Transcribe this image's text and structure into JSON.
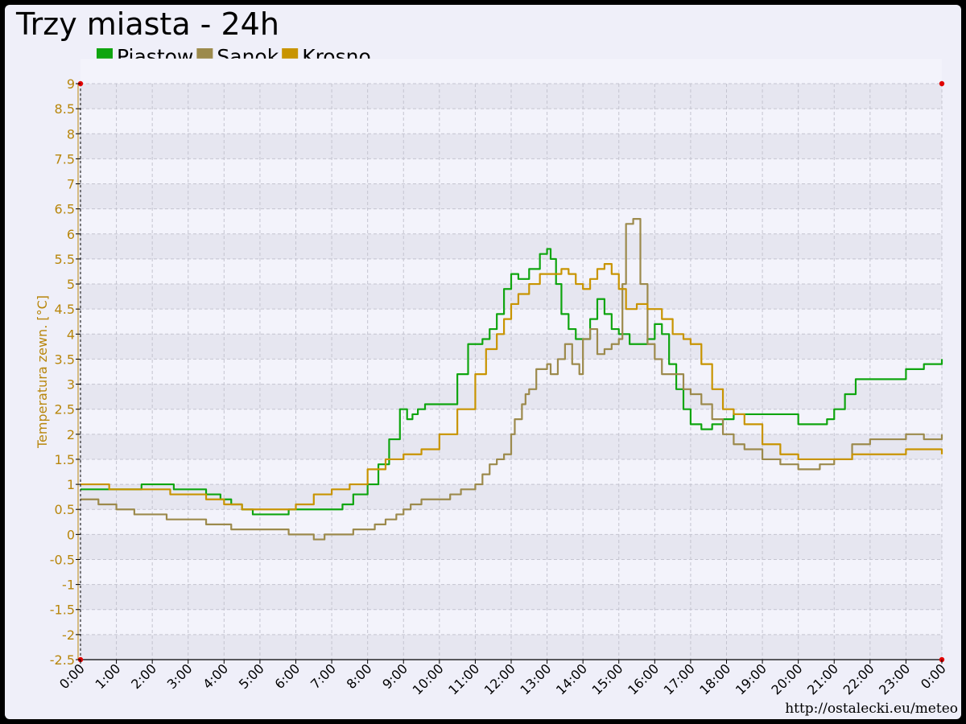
{
  "chart_data": {
    "type": "line",
    "title": "Trzy miasta - 24h",
    "ylabel": "Temperatura zewn. [°C]",
    "xlabel": "",
    "ylim": [
      -2.5,
      9
    ],
    "yticks": [
      "9",
      "8.5",
      "8",
      "7.5",
      "7",
      "6.5",
      "6",
      "5.5",
      "5",
      "4.5",
      "4",
      "3.5",
      "3",
      "2.5",
      "2",
      "1.5",
      "1",
      "0.5",
      "0",
      "-0.5",
      "-1",
      "-1.5",
      "-2",
      "-2.5"
    ],
    "xticks": [
      "0:00",
      "1:00",
      "2:00",
      "3:00",
      "4:00",
      "5:00",
      "6:00",
      "7:00",
      "8:00",
      "9:00",
      "10:00",
      "11:00",
      "12:00",
      "13:00",
      "14:00",
      "15:00",
      "16:00",
      "17:00",
      "18:00",
      "19:00",
      "20:00",
      "21:00",
      "22:00",
      "23:00",
      "0:00"
    ],
    "grid": true,
    "legend_position": "top-left",
    "colors": {
      "axis_text": "#b8860b",
      "piastow": "#0fa50f",
      "sanok": "#9c8a4c",
      "krosno": "#c89400"
    },
    "series": [
      {
        "name": "Piastow",
        "x": [
          0,
          0.5,
          0.8,
          1.5,
          1.7,
          2.4,
          2.6,
          3.2,
          3.5,
          3.9,
          4.2,
          4.5,
          4.8,
          5.5,
          5.8,
          6.3,
          7,
          7.3,
          7.6,
          8,
          8.3,
          8.6,
          8.9,
          9.1,
          9.25,
          9.4,
          9.6,
          10,
          10.2,
          10.5,
          10.8,
          11,
          11.2,
          11.4,
          11.6,
          11.8,
          12,
          12.2,
          12.5,
          12.8,
          13,
          13.1,
          13.25,
          13.4,
          13.6,
          13.8,
          14,
          14.2,
          14.4,
          14.6,
          14.8,
          15,
          15.3,
          15.6,
          15.8,
          16,
          16.2,
          16.4,
          16.6,
          16.8,
          17,
          17.3,
          17.6,
          17.9,
          18.2,
          18.5,
          19,
          19.3,
          19.6,
          20,
          20.4,
          20.8,
          21,
          21.3,
          21.6,
          22,
          22.5,
          23,
          23.5,
          24
        ],
        "values": [
          0.9,
          0.9,
          0.9,
          0.9,
          1.0,
          1.0,
          0.9,
          0.9,
          0.8,
          0.7,
          0.6,
          0.5,
          0.4,
          0.4,
          0.5,
          0.5,
          0.5,
          0.6,
          0.8,
          1.0,
          1.4,
          1.9,
          2.5,
          2.3,
          2.4,
          2.5,
          2.6,
          2.6,
          2.6,
          3.2,
          3.8,
          3.8,
          3.9,
          4.1,
          4.4,
          4.9,
          5.2,
          5.1,
          5.3,
          5.6,
          5.7,
          5.5,
          5.0,
          4.4,
          4.1,
          3.9,
          3.9,
          4.3,
          4.7,
          4.4,
          4.1,
          4.0,
          3.8,
          3.8,
          3.9,
          4.2,
          4.0,
          3.4,
          2.9,
          2.5,
          2.2,
          2.1,
          2.2,
          2.3,
          2.4,
          2.4,
          2.4,
          2.4,
          2.4,
          2.2,
          2.2,
          2.3,
          2.5,
          2.8,
          3.1,
          3.1,
          3.1,
          3.3,
          3.4,
          3.5
        ]
      },
      {
        "name": "Sanok",
        "x": [
          0,
          0.5,
          1,
          1.2,
          1.5,
          2,
          2.4,
          2.8,
          3,
          3.5,
          3.8,
          4.2,
          4.6,
          5,
          5.5,
          5.8,
          6.2,
          6.5,
          6.8,
          7,
          7.3,
          7.6,
          8,
          8.2,
          8.5,
          8.8,
          9,
          9.2,
          9.5,
          10,
          10.3,
          10.6,
          10.8,
          11,
          11.2,
          11.4,
          11.6,
          11.8,
          12,
          12.1,
          12.3,
          12.4,
          12.5,
          12.7,
          13,
          13.1,
          13.2,
          13.3,
          13.5,
          13.7,
          13.9,
          14,
          14.2,
          14.4,
          14.6,
          14.8,
          15,
          15.1,
          15.2,
          15.4,
          15.6,
          15.8,
          16,
          16.2,
          16.5,
          16.8,
          17,
          17.3,
          17.6,
          17.9,
          18.2,
          18.5,
          19,
          19.5,
          20,
          20.3,
          20.6,
          21,
          21.5,
          22,
          22.5,
          23,
          23.5,
          24
        ],
        "values": [
          0.7,
          0.6,
          0.5,
          0.5,
          0.4,
          0.4,
          0.3,
          0.3,
          0.3,
          0.2,
          0.2,
          0.1,
          0.1,
          0.1,
          0.1,
          0.0,
          0.0,
          -0.1,
          0.0,
          0.0,
          0.0,
          0.1,
          0.1,
          0.2,
          0.3,
          0.4,
          0.5,
          0.6,
          0.7,
          0.7,
          0.8,
          0.9,
          0.9,
          1.0,
          1.2,
          1.4,
          1.5,
          1.6,
          2.0,
          2.3,
          2.6,
          2.8,
          2.9,
          3.3,
          3.4,
          3.2,
          3.2,
          3.5,
          3.8,
          3.4,
          3.2,
          3.9,
          4.1,
          3.6,
          3.7,
          3.8,
          3.9,
          5.0,
          6.2,
          6.3,
          5.0,
          3.8,
          3.5,
          3.2,
          3.2,
          2.9,
          2.8,
          2.6,
          2.3,
          2.0,
          1.8,
          1.7,
          1.5,
          1.4,
          1.3,
          1.3,
          1.4,
          1.5,
          1.8,
          1.9,
          1.9,
          2.0,
          1.9,
          2.0
        ]
      },
      {
        "name": "Krosno",
        "x": [
          0,
          0.5,
          0.8,
          1.5,
          2,
          2.5,
          3,
          3.5,
          4,
          4.5,
          5,
          5.5,
          6,
          6.5,
          7,
          7.5,
          8,
          8.5,
          9,
          9.5,
          10,
          10.5,
          11,
          11.3,
          11.6,
          11.8,
          12,
          12.2,
          12.5,
          12.8,
          13,
          13.2,
          13.4,
          13.6,
          13.8,
          14,
          14.2,
          14.4,
          14.6,
          14.8,
          15,
          15.2,
          15.5,
          15.8,
          16,
          16.2,
          16.5,
          16.8,
          17,
          17.3,
          17.6,
          17.9,
          18.2,
          18.5,
          19,
          19.5,
          20,
          20.5,
          21,
          21.5,
          22,
          22.5,
          23,
          23.5,
          24
        ],
        "values": [
          1.0,
          1.0,
          0.9,
          0.9,
          0.9,
          0.8,
          0.8,
          0.7,
          0.6,
          0.5,
          0.5,
          0.5,
          0.6,
          0.8,
          0.9,
          1.0,
          1.3,
          1.5,
          1.6,
          1.7,
          2.0,
          2.5,
          3.2,
          3.7,
          4.0,
          4.3,
          4.6,
          4.8,
          5.0,
          5.2,
          5.2,
          5.2,
          5.3,
          5.2,
          5.0,
          4.9,
          5.1,
          5.3,
          5.4,
          5.2,
          4.9,
          4.5,
          4.6,
          4.5,
          4.5,
          4.3,
          4.0,
          3.9,
          3.8,
          3.4,
          2.9,
          2.5,
          2.4,
          2.2,
          1.8,
          1.6,
          1.5,
          1.5,
          1.5,
          1.6,
          1.6,
          1.6,
          1.7,
          1.7,
          1.6
        ]
      }
    ]
  },
  "footer": {
    "url": "http://ostalecki.eu/meteo"
  }
}
